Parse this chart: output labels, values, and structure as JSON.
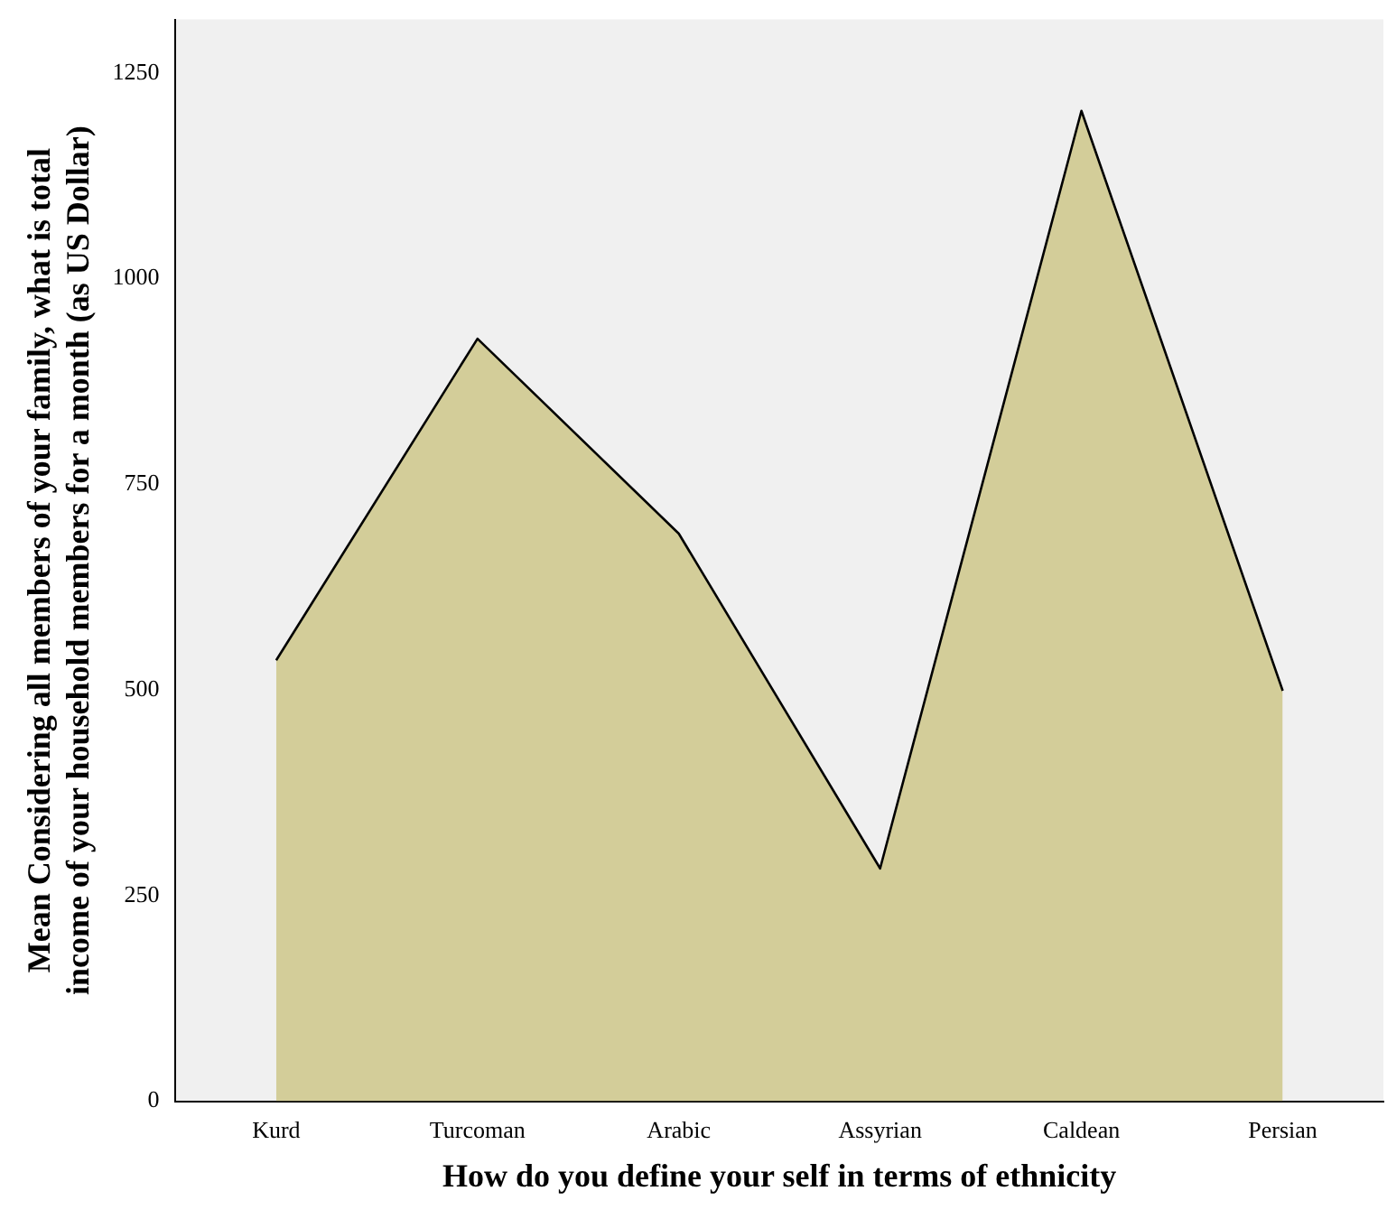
{
  "chart_data": {
    "type": "area",
    "xlabel": "How do you define your self in terms of ethnicity",
    "ylabel": "Mean Considering all members of your family, what is total income of your household members for a month (as US Dollar)",
    "categories": [
      "Kurd",
      "Turcoman",
      "Arabic",
      "Assyrian",
      "Caldean",
      "Persian"
    ],
    "series": [
      {
        "color": "#d3cd99",
        "values": [
          536,
          927,
          690,
          283,
          1204,
          499
        ]
      }
    ],
    "ylim": [
      0,
      1315
    ],
    "yticks": [
      0,
      250,
      500,
      750,
      1000,
      1250
    ],
    "grid": false,
    "legend": false
  }
}
